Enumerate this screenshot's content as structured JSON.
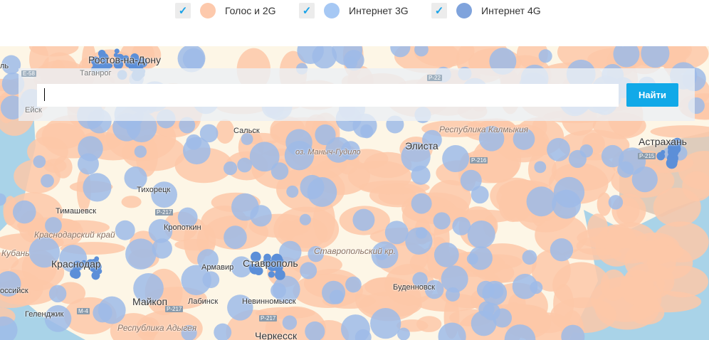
{
  "legend": [
    {
      "label": "Голос и 2G",
      "checked": true,
      "color": "#fdc9ac"
    },
    {
      "label": "Интернет 3G",
      "checked": true,
      "color": "#a6c8f4"
    },
    {
      "label": "Интернет 4G",
      "checked": true,
      "color": "#7fa3dc"
    }
  ],
  "search": {
    "value": "",
    "button_label": "Найти"
  },
  "map": {
    "colors": {
      "land": "#fdf6e6",
      "sea": "#a9d3e8",
      "voice_2g": "#fdc8a8",
      "internet_3g": "#9ebbe8",
      "internet_4g": "#5c8fd8",
      "steppe": "#c9b1a0"
    },
    "cities": [
      "Ростов-на-Дону",
      "Таганрог",
      "Ейск",
      "Сальск",
      "Элиста",
      "Астрахань",
      "Тихорецк",
      "Тимашевск",
      "Кропоткин",
      "Краснодар",
      "Армавир",
      "Ставрополь",
      "Буденновск",
      "Майкоп",
      "Лабинск",
      "Невинномысск",
      "Геленджик",
      "Черкесск",
      "Кубань",
      "оссийск",
      "ль"
    ],
    "regions": [
      "Республика Калмыкия",
      "Краснодарский край",
      "Ставропольский кр.",
      "Республика Адыгея"
    ],
    "lakes": [
      "оз. Маныч-Гудило"
    ],
    "roads": [
      "E-58",
      "P-22",
      "P-216",
      "P-217",
      "M-4",
      "P-217",
      "P-215",
      "P-217"
    ]
  }
}
